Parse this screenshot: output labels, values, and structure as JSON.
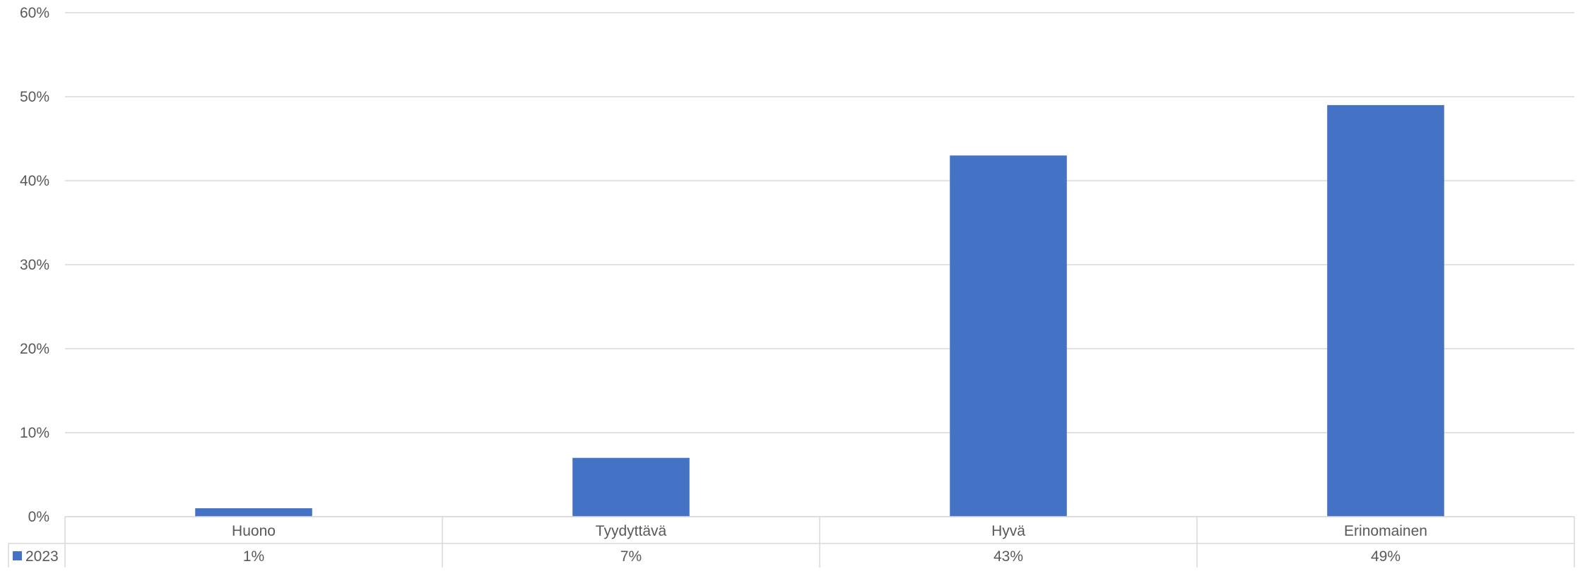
{
  "chart_data": {
    "type": "bar",
    "categories": [
      "Huono",
      "Tyydyttävä",
      "Hyvä",
      "Erinomainen"
    ],
    "series": [
      {
        "name": "2023",
        "values": [
          1,
          7,
          43,
          49
        ],
        "color": "#4472C4",
        "labels": [
          "1%",
          "7%",
          "43%",
          "49%"
        ]
      }
    ],
    "ylim": [
      0,
      60
    ],
    "y_ticks": [
      "0%",
      "10%",
      "20%",
      "30%",
      "40%",
      "50%",
      "60%"
    ],
    "grid": true,
    "legend": "data-table-left",
    "data_table": true
  }
}
